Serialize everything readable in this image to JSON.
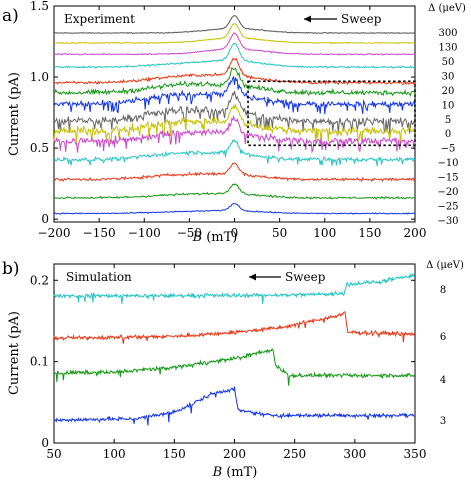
{
  "figure": {
    "panel_a_label": "a)",
    "panel_b_label": "b)"
  },
  "chart_data": [
    {
      "type": "line",
      "panel": "a",
      "annotation": "Experiment",
      "sweep_label": "Sweep",
      "sweep_direction": "decreasing B",
      "xlabel_var": "B",
      "xlabel_unit": "(mT)",
      "ylabel": "Current (pA)",
      "xlim": [
        -200,
        200
      ],
      "ylim": [
        -0.02,
        1.5
      ],
      "xticks": [
        -200,
        -150,
        -100,
        -50,
        0,
        50,
        100,
        150,
        200
      ],
      "yticks": [
        0,
        0.5,
        1.0,
        1.5
      ],
      "ytick_labels": [
        "0",
        "0.5",
        "1.0",
        "1.5"
      ],
      "grid": false,
      "right_label_title": "Δ (μeV)",
      "inset_box": {
        "x": [
          15,
          200
        ],
        "y": [
          0.52,
          0.97
        ],
        "style": "dotted"
      },
      "series": [
        {
          "delta": "300",
          "color": "#555555",
          "baseline": 1.31,
          "peak": 0.09,
          "noise": 0.004,
          "bump": 0.0
        },
        {
          "delta": "130",
          "color": "#c8c000",
          "baseline": 1.24,
          "peak": 0.1,
          "noise": 0.005,
          "bump": 0.0
        },
        {
          "delta": "50",
          "color": "#cc44cc",
          "baseline": 1.16,
          "peak": 0.11,
          "noise": 0.006,
          "bump": 0.0
        },
        {
          "delta": "30",
          "color": "#22c4c4",
          "baseline": 1.07,
          "peak": 0.12,
          "noise": 0.008,
          "bump": 0.02
        },
        {
          "delta": "20",
          "color": "#ee3311",
          "baseline": 0.96,
          "peak": 0.12,
          "noise": 0.015,
          "bump": 0.04
        },
        {
          "delta": "10",
          "color": "#119911",
          "baseline": 0.89,
          "peak": 0.12,
          "noise": 0.025,
          "bump": 0.05
        },
        {
          "delta": "5",
          "color": "#1133ee",
          "baseline": 0.81,
          "peak": 0.13,
          "noise": 0.03,
          "bump": 0.06
        },
        {
          "delta": "0",
          "color": "#666666",
          "baseline": 0.69,
          "peak": 0.13,
          "noise": 0.04,
          "bump": 0.07
        },
        {
          "delta": "-5",
          "color": "#c8c000",
          "baseline": 0.62,
          "peak": 0.12,
          "noise": 0.04,
          "bump": 0.06
        },
        {
          "delta": "-10",
          "color": "#cc44cc",
          "baseline": 0.55,
          "peak": 0.11,
          "noise": 0.035,
          "bump": 0.05
        },
        {
          "delta": "-15",
          "color": "#22c4c4",
          "baseline": 0.42,
          "peak": 0.09,
          "noise": 0.02,
          "bump": 0.04
        },
        {
          "delta": "-20",
          "color": "#ee3311",
          "baseline": 0.28,
          "peak": 0.08,
          "noise": 0.015,
          "bump": 0.03
        },
        {
          "delta": "-25",
          "color": "#119911",
          "baseline": 0.15,
          "peak": 0.07,
          "noise": 0.01,
          "bump": 0.02
        },
        {
          "delta": "-30",
          "color": "#1133ee",
          "baseline": 0.04,
          "peak": 0.05,
          "noise": 0.006,
          "bump": 0.01
        }
      ]
    },
    {
      "type": "line",
      "panel": "b",
      "annotation": "Simulation",
      "sweep_label": "Sweep",
      "sweep_direction": "decreasing B",
      "xlabel_var": "B",
      "xlabel_unit": "(mT)",
      "ylabel": "Current (pA)",
      "xlim": [
        50,
        350
      ],
      "ylim": [
        0,
        0.22
      ],
      "xticks": [
        50,
        100,
        150,
        200,
        250,
        300,
        350
      ],
      "yticks": [
        0,
        0.1,
        0.2
      ],
      "ytick_labels": [
        "0",
        "0.1",
        "0.2"
      ],
      "grid": false,
      "right_label_title": "Δ (μeV)",
      "series": [
        {
          "delta": "8",
          "color": "#22c4c4",
          "jump_x": 292,
          "points": [
            [
              50,
              0.181
            ],
            [
              150,
              0.181
            ],
            [
              250,
              0.182
            ],
            [
              291,
              0.184
            ],
            [
              293,
              0.195
            ],
            [
              320,
              0.198
            ],
            [
              350,
              0.206
            ]
          ]
        },
        {
          "delta": "6",
          "color": "#ee3311",
          "jump_x": 293,
          "points": [
            [
              50,
              0.129
            ],
            [
              150,
              0.131
            ],
            [
              200,
              0.136
            ],
            [
              240,
              0.142
            ],
            [
              290,
              0.158
            ],
            [
              292,
              0.16
            ],
            [
              294,
              0.136
            ],
            [
              350,
              0.134
            ]
          ]
        },
        {
          "delta": "4",
          "color": "#119911",
          "jump_x": 232,
          "points": [
            [
              50,
              0.086
            ],
            [
              100,
              0.087
            ],
            [
              150,
              0.093
            ],
            [
              200,
              0.104
            ],
            [
              230,
              0.114
            ],
            [
              232,
              0.115
            ],
            [
              234,
              0.096
            ],
            [
              245,
              0.083
            ],
            [
              350,
              0.083
            ]
          ]
        },
        {
          "delta": "3",
          "color": "#1133ee",
          "jump_x": 200,
          "points": [
            [
              50,
              0.028
            ],
            [
              120,
              0.03
            ],
            [
              150,
              0.038
            ],
            [
              165,
              0.048
            ],
            [
              180,
              0.06
            ],
            [
              198,
              0.066
            ],
            [
              200,
              0.066
            ],
            [
              203,
              0.04
            ],
            [
              230,
              0.034
            ],
            [
              350,
              0.034
            ]
          ]
        }
      ]
    }
  ]
}
